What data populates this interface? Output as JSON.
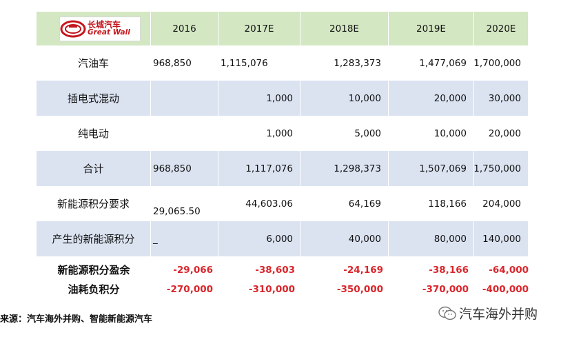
{
  "logo": {
    "cn": "长城汽车",
    "en": "Great Wall"
  },
  "header": [
    "2016",
    "2017E",
    "2018E",
    "2019E",
    "2020E"
  ],
  "rows": [
    {
      "label": "汽油车",
      "values": [
        "968,850",
        "1,115,076",
        "1,283,373",
        "1,477,069",
        "1,700,000"
      ]
    },
    {
      "label": "插电式混动",
      "values": [
        "",
        "1,000",
        "10,000",
        "20,000",
        "30,000"
      ]
    },
    {
      "label": "纯电动",
      "values": [
        "",
        "1,000",
        "5,000",
        "10,000",
        "20,000"
      ]
    },
    {
      "label": "合计",
      "values": [
        "968,850",
        "1,117,076",
        "1,298,373",
        "1,507,069",
        "1,750,000"
      ]
    },
    {
      "label": "新能源积分要求",
      "values": [
        "29,065.50",
        "44,603.06",
        "64,169",
        "118,166",
        "204,000"
      ]
    },
    {
      "label": "产生的新能源积分",
      "values": [
        "_",
        "6,000",
        "40,000",
        "80,000",
        "140,000"
      ]
    }
  ],
  "summary": [
    {
      "label": "新能源积分盈余",
      "values": [
        "-29,066",
        "-38,603",
        "-24,169",
        "-38,166",
        "-64,000"
      ]
    },
    {
      "label": "油耗负积分",
      "values": [
        "-270,000",
        "-310,000",
        "-350,000",
        "-370,000",
        "-400,000"
      ]
    }
  ],
  "colors": {
    "header_bg": "#d3e7c2",
    "band_bg": "#dbe3f1",
    "negative": "#d9262b",
    "brand": "#c5161d"
  },
  "source": "来源：汽车海外并购、智能新能源汽车",
  "watermark": "汽车海外并购"
}
